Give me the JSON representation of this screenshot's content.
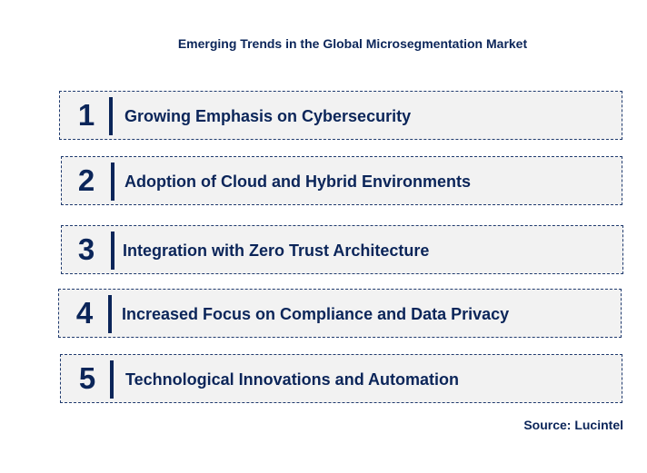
{
  "title": "Emerging Trends in the Global Microsegmentation Market",
  "items": [
    {
      "number": "1",
      "label": "Growing Emphasis on Cybersecurity"
    },
    {
      "number": "2",
      "label": "Adoption of Cloud and Hybrid Environments"
    },
    {
      "number": "3",
      "label": "Integration with Zero Trust Architecture"
    },
    {
      "number": "4",
      "label": "Increased Focus on Compliance and Data Privacy"
    },
    {
      "number": "5",
      "label": "Technological Innovations and Automation"
    }
  ],
  "source": "Source: Lucintel",
  "colors": {
    "text": "#0b2559",
    "box_fill": "#f2f2f2"
  }
}
